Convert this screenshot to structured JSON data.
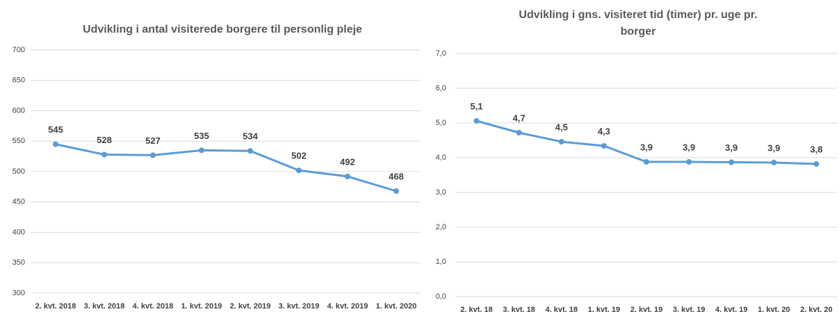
{
  "chart_data": [
    {
      "type": "line",
      "title": "Udvikling i antal visiterede borgere til personlig pleje",
      "categories": [
        "2. kvt. 2018",
        "3. kvt. 2018",
        "4. kvt. 2018",
        "1. kvt. 2019",
        "2. kvt. 2019",
        "3. kvt. 2019",
        "4. kvt. 2019",
        "1. kvt. 2020"
      ],
      "values": [
        545,
        528,
        527,
        535,
        534,
        502,
        492,
        468
      ],
      "color": "#5b9bd5",
      "ylim": [
        300,
        700
      ],
      "yticks": [
        300,
        350,
        400,
        450,
        500,
        550,
        600,
        650,
        700
      ],
      "grid": true
    },
    {
      "type": "line",
      "title": [
        "Udvikling i gns. visiteret tid (timer) pr. uge pr.",
        "borger"
      ],
      "categories": [
        "2. kvt. 18",
        "3. kvt. 18",
        "4. kvt. 18",
        "1. kvt. 19",
        "2. kvt. 19",
        "3. kvt. 19",
        "4. kvt. 19",
        "1. kvt. 20",
        "2. kvt. 20"
      ],
      "values": [
        5.06,
        4.72,
        4.46,
        4.34,
        3.88,
        3.88,
        3.87,
        3.86,
        3.82
      ],
      "value_labels": [
        "5,1",
        "4,7",
        "4,5",
        "4,3",
        "3,9",
        "3,9",
        "3,9",
        "3,9",
        "3,8"
      ],
      "color": "#5b9bd5",
      "ylim": [
        0,
        7
      ],
      "yticks": [
        {
          "value": 0,
          "label": "0,0"
        },
        {
          "value": 1,
          "label": "1,0"
        },
        {
          "value": 2,
          "label": "2,0"
        },
        {
          "value": 3,
          "label": "3,0"
        },
        {
          "value": 4,
          "label": "4,0"
        },
        {
          "value": 5,
          "label": "5,0"
        },
        {
          "value": 6,
          "label": "6,0"
        },
        {
          "value": 7,
          "label": "7,0"
        }
      ],
      "grid": true
    }
  ]
}
